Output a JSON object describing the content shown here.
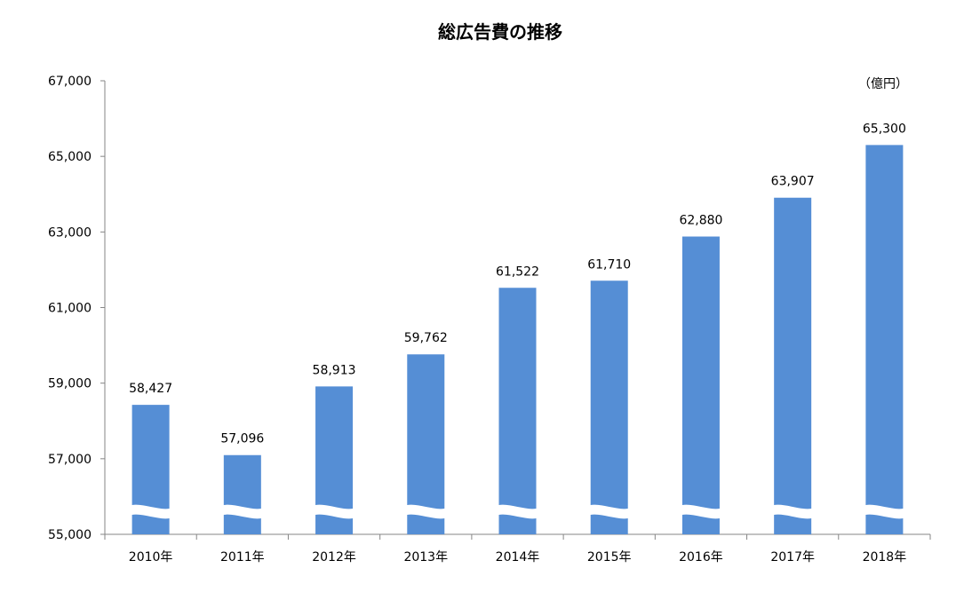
{
  "chart_data": {
    "type": "bar",
    "title": "総広告費の推移",
    "unit_label": "（億円）",
    "categories": [
      "2010年",
      "2011年",
      "2012年",
      "2013年",
      "2014年",
      "2015年",
      "2016年",
      "2017年",
      "2018年"
    ],
    "values": [
      58427,
      57096,
      58913,
      59762,
      61522,
      61710,
      62880,
      63907,
      65300
    ],
    "data_labels": [
      "58,427",
      "57,096",
      "58,913",
      "59,762",
      "61,522",
      "61,710",
      "62,880",
      "63,907",
      "65,300"
    ],
    "y_ticks": [
      "55,000",
      "57,000",
      "59,000",
      "61,000",
      "63,000",
      "65,000",
      "67,000"
    ],
    "ylim": [
      55000,
      67000
    ],
    "axis_break": true,
    "grid": false,
    "bar_color": "#558ED5"
  }
}
